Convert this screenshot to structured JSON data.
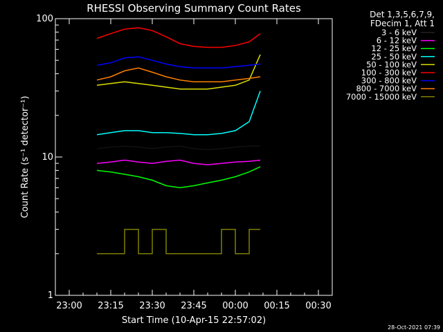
{
  "chart_data": {
    "type": "line",
    "title": "RHESSI Observing Summary Count Rates",
    "xlabel": "Start Time (10-Apr-15 22:57:02)",
    "ylabel": "Count Rate (s⁻¹ detector⁻¹)",
    "yscale": "log",
    "ylim": [
      1,
      100
    ],
    "xlim": [
      "22:55",
      "00:35"
    ],
    "x_tick_labels": [
      "23:00",
      "23:15",
      "23:30",
      "23:45",
      "00:00",
      "00:15",
      "00:30"
    ],
    "y_tick_labels": [
      "1",
      "10",
      "100"
    ],
    "grid": false,
    "legend_placement": "right",
    "legend_header": [
      "Det 1,3,5,6,7,9,",
      "FDecim 1, Att 1"
    ],
    "footer": "28-Oct-2021 07:39",
    "series": [
      {
        "name": "3 - 6 keV",
        "color": "#000000",
        "x": [
          "23:10",
          "23:15",
          "23:20",
          "23:25",
          "23:30",
          "23:35",
          "23:40",
          "23:45",
          "23:50",
          "23:55",
          "00:00",
          "00:05",
          "00:09"
        ],
        "y": [
          11.5,
          11.8,
          12.0,
          11.8,
          11.5,
          11.8,
          12.0,
          11.5,
          11.3,
          11.5,
          11.8,
          12.0,
          12.0
        ]
      },
      {
        "name": "6 - 12 keV",
        "color": "#ff00ff",
        "x": [
          "23:10",
          "23:15",
          "23:20",
          "23:25",
          "23:30",
          "23:35",
          "23:40",
          "23:45",
          "23:50",
          "23:55",
          "00:00",
          "00:05",
          "00:09"
        ],
        "y": [
          9.0,
          9.2,
          9.5,
          9.2,
          9.0,
          9.3,
          9.5,
          9.0,
          8.8,
          9.0,
          9.2,
          9.3,
          9.5
        ]
      },
      {
        "name": "12 - 25 keV",
        "color": "#00ff00",
        "x": [
          "23:10",
          "23:15",
          "23:20",
          "23:25",
          "23:30",
          "23:35",
          "23:40",
          "23:45",
          "23:50",
          "23:55",
          "00:00",
          "00:05",
          "00:09"
        ],
        "y": [
          8.0,
          7.8,
          7.5,
          7.2,
          6.8,
          6.2,
          6.0,
          6.2,
          6.5,
          6.8,
          7.2,
          7.8,
          8.5
        ]
      },
      {
        "name": "25 - 50 keV",
        "color": "#00ffff",
        "x": [
          "23:10",
          "23:15",
          "23:20",
          "23:25",
          "23:30",
          "23:35",
          "23:40",
          "23:45",
          "23:50",
          "23:55",
          "00:00",
          "00:05",
          "00:09"
        ],
        "y": [
          14.5,
          15.0,
          15.5,
          15.5,
          15.0,
          15.0,
          14.8,
          14.5,
          14.5,
          14.8,
          15.5,
          18.0,
          30.0
        ]
      },
      {
        "name": "50 - 100 keV",
        "color": "#e0e000",
        "x": [
          "23:10",
          "23:15",
          "23:20",
          "23:25",
          "23:30",
          "23:35",
          "23:40",
          "23:45",
          "23:50",
          "23:55",
          "00:00",
          "00:05",
          "00:09"
        ],
        "y": [
          33,
          34,
          35,
          34,
          33,
          32,
          31,
          31,
          31,
          32,
          33,
          36,
          55
        ]
      },
      {
        "name": "100 - 300 keV",
        "color": "#ff0000",
        "x": [
          "23:10",
          "23:15",
          "23:20",
          "23:25",
          "23:30",
          "23:35",
          "23:40",
          "23:45",
          "23:50",
          "23:55",
          "00:00",
          "00:05",
          "00:09"
        ],
        "y": [
          72,
          78,
          84,
          86,
          82,
          74,
          66,
          63,
          62,
          62,
          64,
          68,
          78
        ]
      },
      {
        "name": "300 - 800 keV",
        "color": "#0000ff",
        "x": [
          "23:10",
          "23:15",
          "23:20",
          "23:25",
          "23:30",
          "23:35",
          "23:40",
          "23:45",
          "23:50",
          "23:55",
          "00:00",
          "00:05",
          "00:09"
        ],
        "y": [
          46,
          48,
          52,
          53,
          50,
          47,
          45,
          44,
          44,
          44,
          45,
          46,
          47
        ]
      },
      {
        "name": "800 - 7000 keV",
        "color": "#ff8000",
        "x": [
          "23:10",
          "23:15",
          "23:20",
          "23:25",
          "23:30",
          "23:35",
          "23:40",
          "23:45",
          "23:50",
          "23:55",
          "00:00",
          "00:05",
          "00:09"
        ],
        "y": [
          36,
          38,
          42,
          44,
          41,
          38,
          36,
          35,
          35,
          35,
          36,
          37,
          38
        ]
      },
      {
        "name": "7000 - 15000 keV",
        "color": "#808000",
        "x": [
          "23:10",
          "23:15",
          "23:20",
          "23:25",
          "23:30",
          "23:35",
          "23:40",
          "23:45",
          "23:50",
          "23:55",
          "00:00",
          "00:05",
          "00:09"
        ],
        "y": [
          2,
          2,
          3,
          2,
          3,
          2,
          2,
          2,
          2,
          3,
          2,
          3,
          3
        ]
      }
    ]
  }
}
